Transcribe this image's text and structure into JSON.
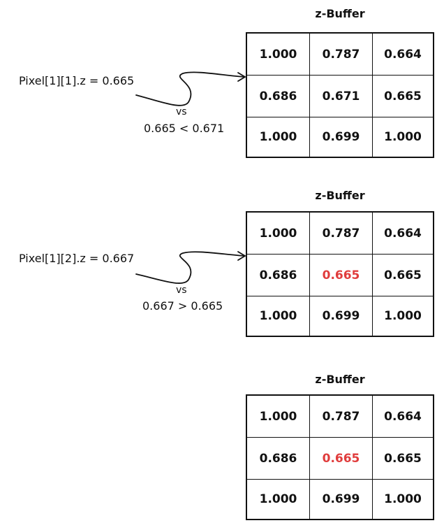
{
  "panels": [
    {
      "title": "z-Buffer",
      "rows": [
        [
          "1.000",
          "0.787",
          "0.664"
        ],
        [
          "0.686",
          "0.671",
          "0.665"
        ],
        [
          "1.000",
          "0.699",
          "1.000"
        ]
      ],
      "highlight": null,
      "pixel_label": "Pixel[1][1].z = 0.665",
      "vs_label": "vs",
      "comparison": "0.665 < 0.671"
    },
    {
      "title": "z-Buffer",
      "rows": [
        [
          "1.000",
          "0.787",
          "0.664"
        ],
        [
          "0.686",
          "0.665",
          "0.665"
        ],
        [
          "1.000",
          "0.699",
          "1.000"
        ]
      ],
      "highlight": [
        1,
        1
      ],
      "pixel_label": "Pixel[1][2].z = 0.667",
      "vs_label": "vs",
      "comparison": "0.667 > 0.665"
    },
    {
      "title": "z-Buffer",
      "rows": [
        [
          "1.000",
          "0.787",
          "0.664"
        ],
        [
          "0.686",
          "0.665",
          "0.665"
        ],
        [
          "1.000",
          "0.699",
          "1.000"
        ]
      ],
      "highlight": [
        1,
        1
      ]
    }
  ],
  "colors": {
    "highlight": "#e03c3c",
    "stroke": "#111111"
  }
}
